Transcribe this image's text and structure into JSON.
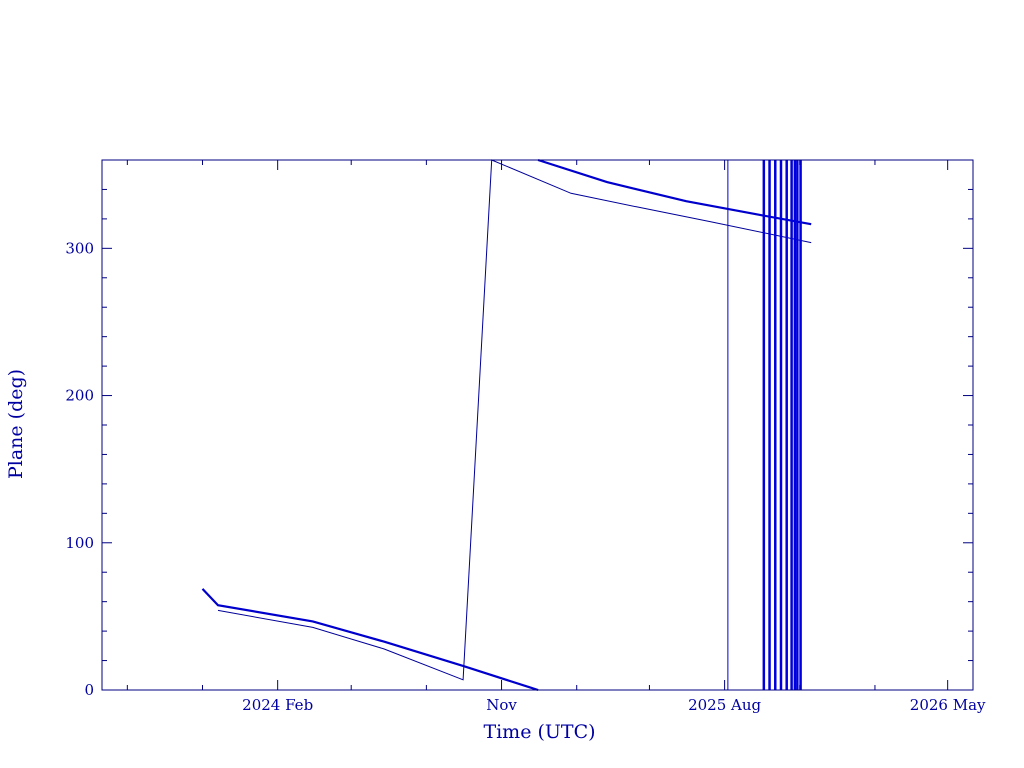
{
  "chart_data": {
    "type": "line",
    "xlabel": "Time (UTC)",
    "ylabel": "Plane (deg)",
    "ylim": [
      0,
      360
    ],
    "xlim": [
      "2023-07-01",
      "2026-06-01"
    ],
    "wrap_period": 360,
    "x_tick_labels": [
      {
        "date": "2024-02-01",
        "label": "2024 Feb"
      },
      {
        "date": "2024-11-01",
        "label": "Nov"
      },
      {
        "date": "2025-08-01",
        "label": "2025 Aug"
      },
      {
        "date": "2026-05-01",
        "label": "2026 May"
      }
    ],
    "y_ticks": [
      0,
      100,
      200,
      300
    ],
    "series": [
      {
        "width": 2.2,
        "color": "#0000cc",
        "x": [
          "2023-11-01",
          "2023-11-20",
          "2024-03-15",
          "2024-06-10",
          "2024-09-15",
          "2024-12-05",
          "2025-03-10",
          "2025-06-15",
          "2025-09-15",
          "2025-11-15"
        ],
        "y": [
          68.7,
          57.6,
          46.6,
          32.9,
          16.4,
          1.9,
          345.0,
          332.0,
          322.5,
          316.4
        ]
      },
      {
        "width": 1,
        "color": "#000099",
        "x": [
          "2023-11-20",
          "2024-03-15",
          "2024-06-10",
          "2024-09-15",
          "2024-10-20",
          "2025-01-25",
          "2025-04-15",
          "2025-07-15",
          "2025-11-15"
        ],
        "y": [
          54.1,
          42.5,
          27.9,
          6.9,
          360.0,
          337.4,
          328.2,
          318.0,
          303.9
        ]
      }
    ],
    "vertical_lines": [
      {
        "date": "2025-08-05",
        "width": 1
      },
      {
        "date": "2025-09-18",
        "width": 2.5
      },
      {
        "date": "2025-09-25",
        "width": 2.5
      },
      {
        "date": "2025-10-02",
        "width": 2.5
      },
      {
        "date": "2025-10-09",
        "width": 2.5
      },
      {
        "date": "2025-10-16",
        "width": 2.5
      },
      {
        "date": "2025-10-22",
        "width": 2.5
      },
      {
        "date": "2025-10-26",
        "width": 2.5
      },
      {
        "date": "2025-10-29",
        "width": 2.5
      },
      {
        "date": "2025-11-02",
        "width": 2.5
      }
    ],
    "grid": false,
    "colors": {
      "frame": "#000080",
      "text": "#0000a0",
      "vertical_line": "#0000dd"
    }
  }
}
